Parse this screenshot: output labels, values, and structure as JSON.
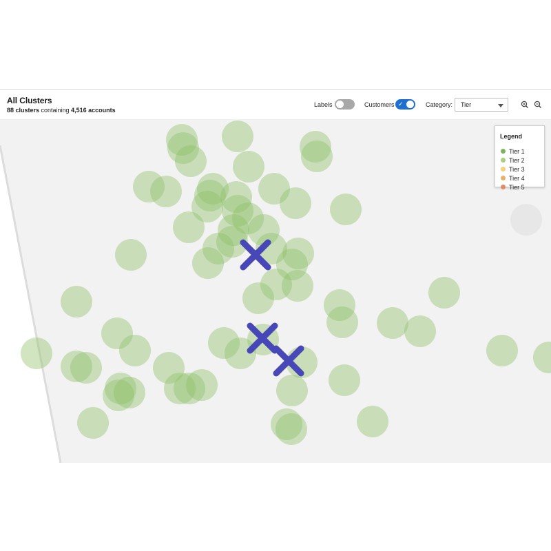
{
  "header": {
    "title": "All Clusters",
    "subtitle": {
      "clusters": "88 clusters",
      "containing": " containing ",
      "accounts": "4,516 accounts"
    },
    "controls": {
      "labels": {
        "label": "Labels",
        "state": "off"
      },
      "customers": {
        "label": "Customers",
        "state": "on"
      },
      "category": {
        "label": "Category:",
        "value": "Tier"
      },
      "zoom_in_icon": "zoom-in-icon",
      "zoom_out_icon": "zoom-out-icon"
    }
  },
  "legend": {
    "title": "Legend",
    "items": [
      {
        "label": "Tier 1",
        "color": "#7fb35a"
      },
      {
        "label": "Tier 2",
        "color": "#a9cf7d"
      },
      {
        "label": "Tier 3",
        "color": "#f3d27a"
      },
      {
        "label": "Tier 4",
        "color": "#e9b06a"
      },
      {
        "label": "Tier 5",
        "color": "#e58b63"
      }
    ]
  },
  "colors": {
    "cluster_fill": "#8fc06a",
    "cluster_fill_light": "#a9cf88",
    "marker": "#4747b8",
    "plot_bg": "#f2f2f2",
    "toggle_on": "#1f6fd1",
    "toggle_off": "#a8a8a8"
  }
}
